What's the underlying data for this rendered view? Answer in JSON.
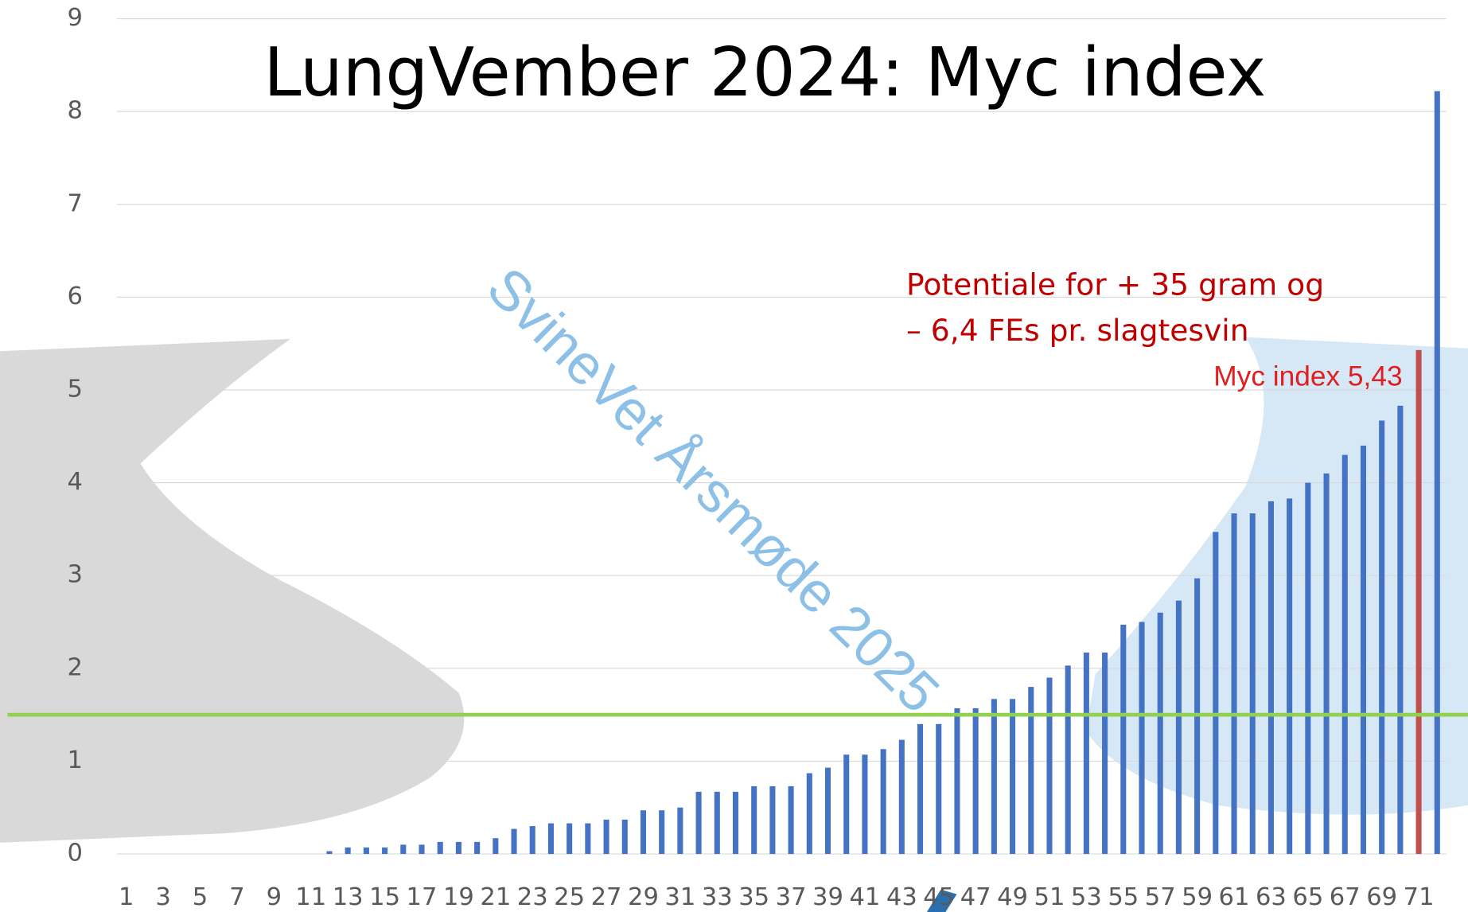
{
  "chart_data": {
    "type": "bar",
    "title": "LungVember 2024: Myc index",
    "categories": [
      "1",
      null,
      "3",
      null,
      "5",
      null,
      "7",
      null,
      "9",
      null,
      "11",
      null,
      "13",
      null,
      "15",
      null,
      "17",
      null,
      "19",
      null,
      "21",
      null,
      "23",
      null,
      "25",
      null,
      "27",
      null,
      "29",
      null,
      "31",
      null,
      "33",
      null,
      "35",
      null,
      "37",
      null,
      "39",
      null,
      "41",
      null,
      "43",
      null,
      "45",
      null,
      "47",
      null,
      "49",
      null,
      "51",
      null,
      "53",
      null,
      "55",
      null,
      "57",
      null,
      "59",
      null,
      "61",
      null,
      "63",
      null,
      "65",
      null,
      "67",
      null,
      "69",
      null,
      "71",
      null
    ],
    "values": [
      0,
      0,
      0,
      0,
      0,
      0,
      0,
      0,
      0,
      0,
      0,
      0.03,
      0.07,
      0.07,
      0.07,
      0.1,
      0.1,
      0.13,
      0.13,
      0.13,
      0.17,
      0.27,
      0.3,
      0.33,
      0.33,
      0.33,
      0.37,
      0.37,
      0.47,
      0.47,
      0.5,
      0.67,
      0.67,
      0.67,
      0.73,
      0.73,
      0.73,
      0.87,
      0.93,
      1.07,
      1.07,
      1.13,
      1.23,
      1.4,
      1.4,
      1.57,
      1.57,
      1.67,
      1.67,
      1.8,
      1.9,
      2.03,
      2.17,
      2.17,
      2.47,
      2.5,
      2.6,
      2.73,
      2.97,
      3.47,
      3.67,
      3.67,
      3.8,
      3.83,
      4.0,
      4.1,
      4.3,
      4.4,
      4.67,
      4.83,
      5.43,
      8.22
    ],
    "colors": [
      "#4472c4",
      "#4472c4",
      "#4472c4",
      "#4472c4",
      "#4472c4",
      "#4472c4",
      "#4472c4",
      "#4472c4",
      "#4472c4",
      "#4472c4",
      "#4472c4",
      "#4472c4",
      "#4472c4",
      "#4472c4",
      "#4472c4",
      "#4472c4",
      "#4472c4",
      "#4472c4",
      "#4472c4",
      "#4472c4",
      "#4472c4",
      "#4472c4",
      "#4472c4",
      "#4472c4",
      "#4472c4",
      "#4472c4",
      "#4472c4",
      "#4472c4",
      "#4472c4",
      "#4472c4",
      "#4472c4",
      "#4472c4",
      "#4472c4",
      "#4472c4",
      "#4472c4",
      "#4472c4",
      "#4472c4",
      "#4472c4",
      "#4472c4",
      "#4472c4",
      "#4472c4",
      "#4472c4",
      "#4472c4",
      "#4472c4",
      "#4472c4",
      "#4472c4",
      "#4472c4",
      "#4472c4",
      "#4472c4",
      "#4472c4",
      "#4472c4",
      "#4472c4",
      "#4472c4",
      "#4472c4",
      "#4472c4",
      "#4472c4",
      "#4472c4",
      "#4472c4",
      "#4472c4",
      "#4472c4",
      "#4472c4",
      "#4472c4",
      "#4472c4",
      "#4472c4",
      "#4472c4",
      "#4472c4",
      "#4472c4",
      "#4472c4",
      "#4472c4",
      "#4472c4",
      "#c0504d",
      "#4472c4"
    ],
    "ylim": [
      0,
      9
    ],
    "yticks": [
      0,
      1,
      2,
      3,
      4,
      5,
      6,
      7,
      8,
      9
    ],
    "grid": true,
    "reference_line": {
      "value": 1.5,
      "color": "#92d050"
    },
    "annotations": [
      "Potentiale for + 35 gram og",
      "– 6,4 FEs pr. slagtesvin",
      "Myc index 5,43"
    ],
    "watermark": "SvineVet Årsmøde 2025"
  }
}
